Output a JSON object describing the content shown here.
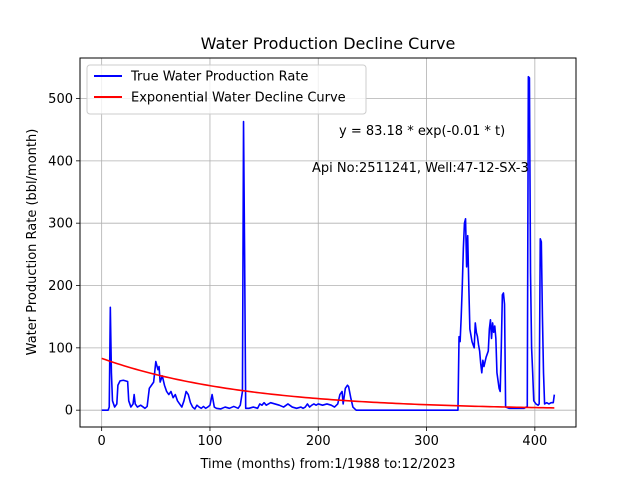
{
  "chart_data": {
    "type": "line",
    "title": "Water Production Decline Curve",
    "xlabel": "Time (months) from:1/1988 to:12/2023",
    "ylabel": "Water Production Rate (bbl/month)",
    "xlim": [
      -20,
      438
    ],
    "ylim": [
      -27,
      565
    ],
    "xticks": [
      0,
      100,
      200,
      300,
      400
    ],
    "yticks": [
      0,
      100,
      200,
      300,
      400,
      500
    ],
    "grid": true,
    "legend_position": "top-left",
    "annotations": [
      {
        "text": "y = 83.18 * exp(-0.01 * t)",
        "x": 220,
        "y": 435
      },
      {
        "text": "Api No:2511241, Well:47-12-SX-3",
        "x": 194,
        "y": 378
      }
    ],
    "series": [
      {
        "name": "True Water Production Rate",
        "color": "#0000ff",
        "points": [
          [
            0,
            0
          ],
          [
            6,
            0
          ],
          [
            7,
            5
          ],
          [
            8,
            165
          ],
          [
            9,
            60
          ],
          [
            10,
            15
          ],
          [
            12,
            5
          ],
          [
            14,
            10
          ],
          [
            15,
            40
          ],
          [
            17,
            47
          ],
          [
            20,
            48
          ],
          [
            22,
            47
          ],
          [
            24,
            46
          ],
          [
            25,
            15
          ],
          [
            27,
            5
          ],
          [
            29,
            10
          ],
          [
            30,
            25
          ],
          [
            31,
            10
          ],
          [
            33,
            5
          ],
          [
            36,
            8
          ],
          [
            40,
            3
          ],
          [
            42,
            6
          ],
          [
            44,
            35
          ],
          [
            46,
            40
          ],
          [
            48,
            45
          ],
          [
            50,
            78
          ],
          [
            52,
            65
          ],
          [
            53,
            70
          ],
          [
            54,
            45
          ],
          [
            56,
            55
          ],
          [
            58,
            40
          ],
          [
            60,
            30
          ],
          [
            62,
            25
          ],
          [
            64,
            30
          ],
          [
            66,
            20
          ],
          [
            68,
            25
          ],
          [
            70,
            15
          ],
          [
            72,
            10
          ],
          [
            74,
            5
          ],
          [
            76,
            15
          ],
          [
            78,
            30
          ],
          [
            80,
            25
          ],
          [
            82,
            12
          ],
          [
            84,
            5
          ],
          [
            86,
            2
          ],
          [
            88,
            8
          ],
          [
            90,
            5
          ],
          [
            92,
            3
          ],
          [
            94,
            6
          ],
          [
            96,
            3
          ],
          [
            98,
            5
          ],
          [
            100,
            8
          ],
          [
            102,
            25
          ],
          [
            104,
            5
          ],
          [
            106,
            3
          ],
          [
            110,
            2
          ],
          [
            114,
            5
          ],
          [
            118,
            3
          ],
          [
            122,
            6
          ],
          [
            126,
            3
          ],
          [
            128,
            8
          ],
          [
            130,
            30
          ],
          [
            131,
            463
          ],
          [
            132,
            250
          ],
          [
            133,
            3
          ],
          [
            136,
            3
          ],
          [
            140,
            5
          ],
          [
            144,
            3
          ],
          [
            146,
            10
          ],
          [
            148,
            8
          ],
          [
            150,
            12
          ],
          [
            152,
            8
          ],
          [
            156,
            12
          ],
          [
            160,
            10
          ],
          [
            164,
            8
          ],
          [
            168,
            5
          ],
          [
            172,
            10
          ],
          [
            176,
            5
          ],
          [
            180,
            3
          ],
          [
            184,
            5
          ],
          [
            186,
            3
          ],
          [
            188,
            5
          ],
          [
            190,
            10
          ],
          [
            192,
            5
          ],
          [
            194,
            8
          ],
          [
            196,
            10
          ],
          [
            198,
            8
          ],
          [
            200,
            10
          ],
          [
            204,
            8
          ],
          [
            208,
            10
          ],
          [
            212,
            8
          ],
          [
            215,
            5
          ],
          [
            218,
            10
          ],
          [
            220,
            25
          ],
          [
            222,
            30
          ],
          [
            223,
            10
          ],
          [
            225,
            35
          ],
          [
            227,
            40
          ],
          [
            228,
            38
          ],
          [
            230,
            20
          ],
          [
            232,
            5
          ],
          [
            235,
            0
          ],
          [
            260,
            0
          ],
          [
            290,
            0
          ],
          [
            320,
            0
          ],
          [
            329,
            0
          ],
          [
            330,
            118
          ],
          [
            331,
            110
          ],
          [
            332,
            150
          ],
          [
            333,
            200
          ],
          [
            334,
            260
          ],
          [
            335,
            300
          ],
          [
            336,
            307
          ],
          [
            337,
            230
          ],
          [
            338,
            280
          ],
          [
            339,
            200
          ],
          [
            340,
            130
          ],
          [
            342,
            110
          ],
          [
            344,
            100
          ],
          [
            345,
            140
          ],
          [
            346,
            125
          ],
          [
            347,
            118
          ],
          [
            348,
            105
          ],
          [
            349,
            95
          ],
          [
            350,
            75
          ],
          [
            351,
            60
          ],
          [
            352,
            80
          ],
          [
            353,
            70
          ],
          [
            355,
            85
          ],
          [
            357,
            95
          ],
          [
            358,
            130
          ],
          [
            359,
            145
          ],
          [
            360,
            115
          ],
          [
            361,
            140
          ],
          [
            362,
            125
          ],
          [
            363,
            135
          ],
          [
            364,
            115
          ],
          [
            365,
            60
          ],
          [
            367,
            35
          ],
          [
            368,
            30
          ],
          [
            369,
            100
          ],
          [
            370,
            185
          ],
          [
            371,
            188
          ],
          [
            372,
            170
          ],
          [
            373,
            5
          ],
          [
            376,
            3
          ],
          [
            380,
            3
          ],
          [
            385,
            3
          ],
          [
            390,
            3
          ],
          [
            392,
            5
          ],
          [
            393,
            5
          ],
          [
            394,
            535
          ],
          [
            395,
            533
          ],
          [
            396,
            220
          ],
          [
            397,
            100
          ],
          [
            398,
            60
          ],
          [
            399,
            15
          ],
          [
            401,
            10
          ],
          [
            403,
            8
          ],
          [
            404,
            10
          ],
          [
            405,
            275
          ],
          [
            406,
            270
          ],
          [
            407,
            150
          ],
          [
            408,
            60
          ],
          [
            409,
            10
          ],
          [
            411,
            12
          ],
          [
            413,
            10
          ],
          [
            415,
            12
          ],
          [
            417,
            12
          ],
          [
            418,
            25
          ]
        ]
      },
      {
        "name": "Exponential Water Decline Curve",
        "color": "#ff0000",
        "function": {
          "a": 83.18,
          "b": -0.0075,
          "x_start": 0,
          "x_end": 418
        }
      }
    ]
  }
}
